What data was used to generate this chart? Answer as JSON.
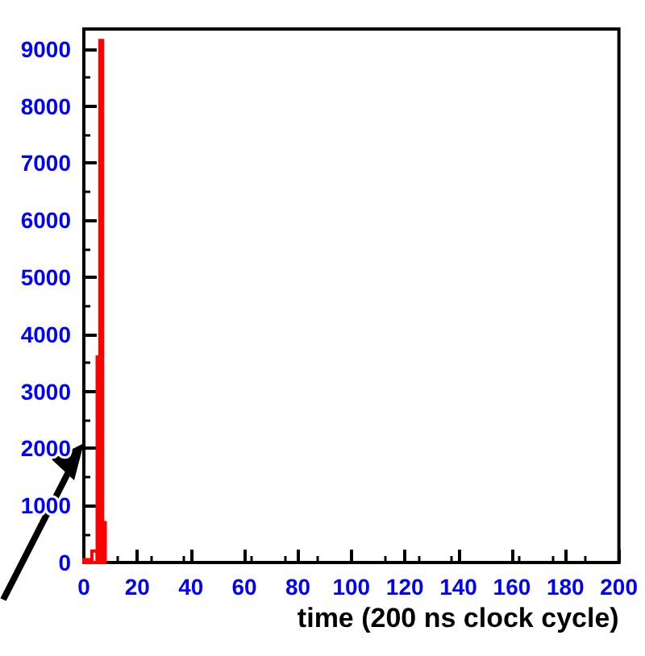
{
  "chart_data": {
    "type": "histogram",
    "xlabel": "time (200 ns clock cycle)",
    "bins": [
      0,
      3,
      5,
      6,
      7,
      8
    ],
    "values": [
      50,
      200,
      3600,
      9150,
      700
    ],
    "color": "#ff0000",
    "xlim": [
      0,
      200
    ],
    "xticks": [
      0,
      20,
      40,
      60,
      80,
      100,
      120,
      140,
      160,
      180,
      200
    ],
    "ylim": [
      0,
      9350
    ],
    "yticks": [
      0,
      1000,
      2000,
      3000,
      4000,
      5000,
      6000,
      7000,
      8000,
      9000
    ],
    "grid": false
  }
}
